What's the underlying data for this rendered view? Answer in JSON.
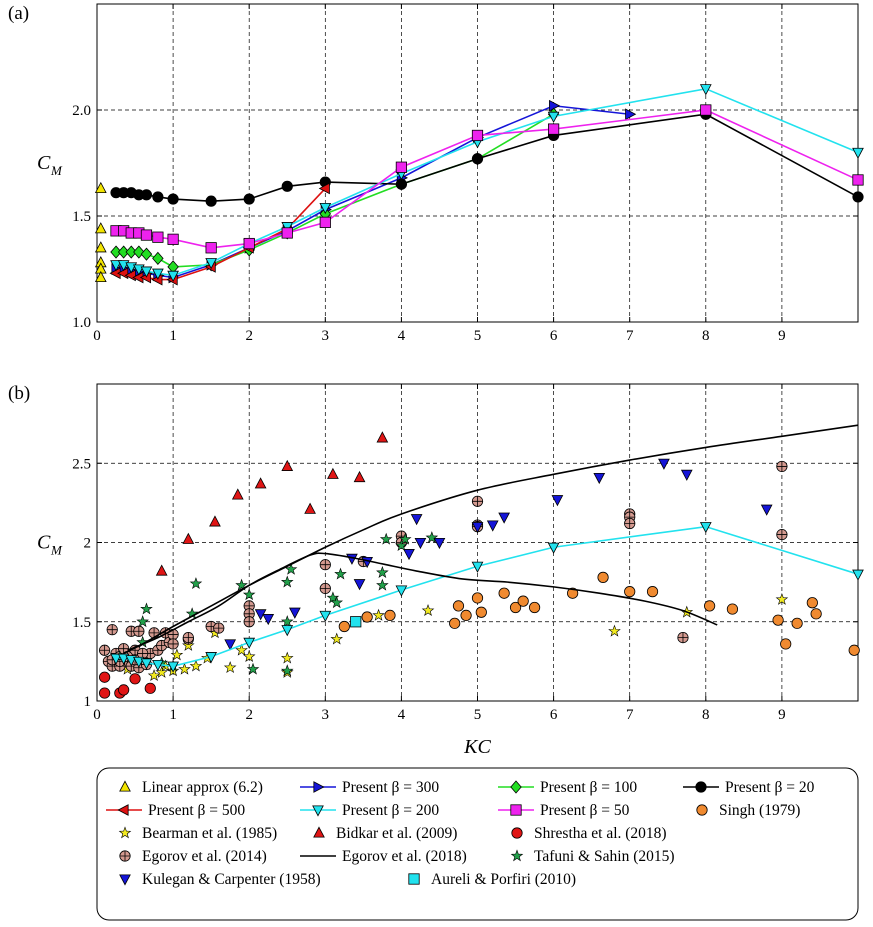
{
  "chart_data": [
    {
      "panel": "(a)",
      "type": "line",
      "ylabel": "C",
      "ylabel_sub": "M",
      "xlim": [
        0,
        10
      ],
      "ylim": [
        1.0,
        2.5
      ],
      "xticks": [
        0,
        1,
        2,
        3,
        4,
        5,
        6,
        7,
        8,
        9
      ],
      "yticks": [
        1.0,
        1.5,
        2.0
      ],
      "ytick_labels": [
        "1.0",
        "1.5",
        "2.0"
      ],
      "grid": true,
      "series": [
        {
          "key": "linear",
          "color": "#f2e400",
          "marker": "triangle-up",
          "line": false,
          "x": [
            0.05,
            0.05,
            0.05,
            0.05,
            0.05,
            0.05
          ],
          "y": [
            1.63,
            1.44,
            1.35,
            1.28,
            1.25,
            1.21
          ]
        },
        {
          "key": "b300",
          "color": "#1515d8",
          "marker": "triangle-right",
          "line": true,
          "x": [
            0.25,
            0.35,
            0.45,
            0.55,
            0.65,
            0.8,
            1.0,
            1.5,
            2.0,
            2.5,
            3.0,
            4.0,
            5.0,
            6.0,
            7.0
          ],
          "y": [
            1.25,
            1.25,
            1.24,
            1.24,
            1.23,
            1.22,
            1.21,
            1.27,
            1.35,
            1.43,
            1.53,
            1.68,
            1.87,
            2.02,
            1.98
          ]
        },
        {
          "key": "b100",
          "color": "#22dd22",
          "marker": "diamond",
          "line": true,
          "x": [
            0.25,
            0.35,
            0.45,
            0.55,
            0.65,
            0.8,
            1.0,
            1.5,
            2.0,
            2.5,
            3.0,
            4.0,
            5.0,
            6.0
          ],
          "y": [
            1.33,
            1.33,
            1.33,
            1.33,
            1.32,
            1.3,
            1.26,
            1.27,
            1.34,
            1.42,
            1.51,
            1.65,
            1.77,
            1.98
          ]
        },
        {
          "key": "b20",
          "color": "#000000",
          "marker": "circle",
          "line": true,
          "x": [
            0.25,
            0.35,
            0.45,
            0.55,
            0.65,
            0.8,
            1.0,
            1.5,
            2.0,
            2.5,
            3.0,
            4.0,
            5.0,
            6.0,
            8.0,
            10.0
          ],
          "y": [
            1.61,
            1.61,
            1.61,
            1.6,
            1.6,
            1.59,
            1.58,
            1.57,
            1.58,
            1.64,
            1.66,
            1.65,
            1.77,
            1.88,
            1.98,
            1.59
          ]
        },
        {
          "key": "b500",
          "color": "#dd1111",
          "marker": "triangle-left",
          "line": true,
          "x": [
            0.25,
            0.35,
            0.45,
            0.55,
            0.65,
            0.8,
            1.0,
            1.5,
            2.0,
            2.5,
            3.0
          ],
          "y": [
            1.23,
            1.23,
            1.22,
            1.21,
            1.21,
            1.2,
            1.2,
            1.26,
            1.35,
            1.44,
            1.63
          ]
        },
        {
          "key": "b200",
          "color": "#22e2ee",
          "marker": "triangle-down",
          "line": true,
          "x": [
            0.25,
            0.35,
            0.45,
            0.55,
            0.65,
            0.8,
            1.0,
            1.5,
            2.0,
            2.5,
            3.0,
            4.0,
            5.0,
            6.0,
            8.0,
            10.0
          ],
          "y": [
            1.27,
            1.27,
            1.26,
            1.25,
            1.24,
            1.23,
            1.22,
            1.28,
            1.37,
            1.45,
            1.54,
            1.7,
            1.85,
            1.97,
            2.1,
            1.8
          ]
        },
        {
          "key": "b50",
          "color": "#ee22ee",
          "marker": "square",
          "line": true,
          "x": [
            0.25,
            0.35,
            0.45,
            0.55,
            0.65,
            0.8,
            1.0,
            1.5,
            2.0,
            2.5,
            3.0,
            4.0,
            5.0,
            6.0,
            8.0,
            10.0
          ],
          "y": [
            1.43,
            1.43,
            1.42,
            1.42,
            1.41,
            1.4,
            1.39,
            1.35,
            1.37,
            1.42,
            1.47,
            1.73,
            1.88,
            1.91,
            2.0,
            1.67
          ]
        }
      ]
    },
    {
      "panel": "(b)",
      "type": "scatter",
      "xlabel": "KC",
      "ylabel": "C",
      "ylabel_sub": "M",
      "xlim": [
        0,
        10
      ],
      "ylim": [
        1.0,
        3.0
      ],
      "xticks": [
        0,
        1,
        2,
        3,
        4,
        5,
        6,
        7,
        8,
        9
      ],
      "yticks": [
        1.0,
        1.5,
        2.0,
        2.5
      ],
      "ytick_labels": [
        "1",
        "1.5",
        "2",
        "2.5"
      ],
      "grid": true,
      "series": [
        {
          "key": "singh",
          "color": "#f08a30",
          "marker": "circle",
          "line": false,
          "x": [
            3.25,
            3.55,
            3.85,
            4.7,
            4.75,
            4.85,
            5.0,
            5.05,
            5.35,
            5.5,
            5.6,
            5.75,
            6.25,
            6.65,
            7.0,
            7.3,
            8.05,
            8.35,
            8.95,
            9.05,
            9.2,
            9.4,
            9.45,
            9.95
          ],
          "y": [
            1.47,
            1.53,
            1.54,
            1.49,
            1.6,
            1.54,
            1.65,
            1.56,
            1.68,
            1.59,
            1.63,
            1.59,
            1.68,
            1.78,
            1.69,
            1.69,
            1.6,
            1.58,
            1.51,
            1.36,
            1.49,
            1.62,
            1.55,
            1.32
          ]
        },
        {
          "key": "bearman",
          "color": "#f2ea20",
          "marker": "star",
          "line": false,
          "x": [
            0.4,
            0.55,
            0.65,
            0.75,
            0.85,
            0.9,
            1.0,
            1.05,
            1.15,
            1.2,
            1.3,
            1.45,
            1.55,
            1.75,
            1.9,
            2.0,
            2.5,
            2.5,
            3.15,
            3.7,
            4.35,
            6.8,
            7.75,
            9.0
          ],
          "y": [
            1.2,
            1.3,
            1.23,
            1.16,
            1.18,
            1.22,
            1.19,
            1.29,
            1.2,
            1.35,
            1.22,
            1.27,
            1.43,
            1.21,
            1.32,
            1.28,
            1.18,
            1.27,
            1.39,
            1.54,
            1.57,
            1.44,
            1.56,
            1.64
          ]
        },
        {
          "key": "bidkar",
          "color": "#e01515",
          "marker": "triangle-up",
          "line": false,
          "x": [
            0.85,
            1.2,
            1.55,
            1.85,
            2.15,
            2.5,
            2.8,
            3.1,
            3.45,
            3.75
          ],
          "y": [
            1.82,
            2.02,
            2.13,
            2.3,
            2.37,
            2.48,
            2.21,
            2.43,
            2.41,
            2.66
          ]
        },
        {
          "key": "shrestha",
          "color": "#e01515",
          "marker": "circle",
          "line": false,
          "x": [
            0.1,
            0.1,
            0.3,
            0.35,
            0.5,
            0.7
          ],
          "y": [
            1.15,
            1.05,
            1.05,
            1.07,
            1.14,
            1.08
          ]
        },
        {
          "key": "egorov2014",
          "color": "#d49a90",
          "marker": "circle-plus",
          "line": false,
          "x": [
            0.1,
            0.15,
            0.2,
            0.25,
            0.3,
            0.35,
            0.4,
            0.45,
            0.5,
            0.55,
            0.6,
            0.7,
            0.75,
            0.8,
            0.85,
            0.9,
            0.95,
            1.0,
            1.0,
            1.2,
            1.2,
            1.5,
            1.6,
            2.0,
            2.0,
            2.0,
            3.0,
            3.0,
            3.5,
            4.0,
            4.0,
            5.0,
            5.0,
            5.0,
            7.0,
            7.0,
            7.0,
            7.7,
            9.0,
            9.0,
            0.2,
            0.3,
            0.45,
            0.55,
            0.65,
            0.2,
            0.3,
            0.4,
            0.5,
            0.6
          ],
          "y": [
            1.32,
            1.25,
            1.45,
            1.3,
            1.28,
            1.33,
            1.25,
            1.44,
            1.32,
            1.44,
            1.27,
            1.3,
            1.43,
            1.32,
            1.35,
            1.43,
            1.37,
            1.42,
            1.36,
            1.39,
            1.4,
            1.47,
            1.46,
            1.6,
            1.55,
            1.5,
            1.86,
            1.71,
            1.88,
            2.04,
            2.0,
            2.26,
            2.11,
            2.1,
            2.18,
            2.16,
            2.12,
            1.4,
            2.48,
            2.05,
            1.22,
            1.22,
            1.22,
            1.21,
            1.23,
            1.26,
            1.25,
            1.28,
            1.26,
            1.3
          ]
        },
        {
          "key": "tafuni",
          "color": "#22a04a",
          "marker": "star",
          "line": false,
          "x": [
            0.3,
            0.6,
            0.65,
            0.85,
            1.0,
            1.25,
            1.3,
            1.9,
            2.0,
            2.05,
            2.5,
            2.5,
            2.55,
            2.5,
            3.1,
            3.15,
            3.2,
            3.75,
            3.75,
            3.8,
            4.0,
            4.05,
            4.4,
            0.6
          ],
          "y": [
            1.28,
            1.5,
            1.58,
            1.24,
            1.22,
            1.55,
            1.74,
            1.73,
            1.67,
            1.2,
            1.75,
            1.5,
            1.83,
            1.19,
            1.65,
            1.62,
            1.8,
            1.73,
            1.81,
            2.02,
            1.98,
            2.02,
            2.03,
            1.37
          ]
        },
        {
          "key": "kulegan",
          "color": "#1515d8",
          "marker": "triangle-down",
          "line": false,
          "x": [
            1.75,
            2.15,
            2.25,
            2.6,
            3.35,
            3.45,
            3.55,
            4.1,
            4.2,
            4.25,
            4.5,
            5.0,
            5.2,
            5.35,
            6.05,
            6.6,
            7.45,
            7.75,
            8.8
          ],
          "y": [
            1.36,
            1.55,
            1.52,
            1.56,
            1.9,
            1.74,
            1.88,
            1.93,
            2.15,
            2.0,
            2.0,
            2.1,
            2.11,
            2.16,
            2.27,
            2.41,
            2.5,
            2.43,
            2.21
          ]
        },
        {
          "key": "aureli",
          "color": "#22e2ee",
          "marker": "square",
          "line": false,
          "x": [
            3.4
          ],
          "y": [
            1.5
          ]
        },
        {
          "key": "b200",
          "color": "#22e2ee",
          "marker": "triangle-down",
          "line": true,
          "x": [
            0.25,
            0.35,
            0.45,
            0.55,
            0.65,
            0.8,
            1.0,
            1.5,
            2.0,
            2.5,
            3.0,
            4.0,
            5.0,
            6.0,
            8.0,
            10.0
          ],
          "y": [
            1.27,
            1.27,
            1.26,
            1.25,
            1.24,
            1.23,
            1.22,
            1.28,
            1.37,
            1.45,
            1.54,
            1.7,
            1.85,
            1.97,
            2.1,
            1.8
          ]
        },
        {
          "key": "egorov2018",
          "color": "#000000",
          "marker": "none",
          "line": true,
          "smooth": true,
          "x": [
            0.35,
            0.6,
            1.0,
            1.5,
            2.0,
            2.5,
            3.0,
            3.5,
            4.0,
            5.0,
            6.0,
            7.0,
            8.0,
            9.0,
            10.0
          ],
          "y": [
            1.3,
            1.36,
            1.47,
            1.6,
            1.73,
            1.85,
            1.97,
            2.08,
            2.18,
            2.33,
            2.43,
            2.52,
            2.6,
            2.67,
            2.74
          ]
        },
        {
          "key": "egorov2018",
          "color": "#000000",
          "marker": "none",
          "line": true,
          "smooth": true,
          "x": [
            0.4,
            0.8,
            1.2,
            1.6,
            2.0,
            2.4,
            2.8,
            3.0,
            3.4,
            3.8,
            4.2,
            4.8,
            5.4,
            6.0,
            6.6,
            7.2,
            7.7,
            8.15
          ],
          "y": [
            1.32,
            1.4,
            1.5,
            1.6,
            1.73,
            1.83,
            1.92,
            1.93,
            1.9,
            1.86,
            1.82,
            1.77,
            1.75,
            1.72,
            1.68,
            1.63,
            1.57,
            1.48
          ]
        }
      ]
    }
  ],
  "panel_labels": {
    "a": "(a)",
    "b": "(b)"
  },
  "legend": [
    {
      "key": "linear",
      "label": "Linear approx (6.2)",
      "color": "#f2e400",
      "marker": "triangle-up",
      "line": false
    },
    {
      "key": "b300",
      "label": "Present β = 300",
      "color": "#1515d8",
      "marker": "triangle-right",
      "line": true
    },
    {
      "key": "b100",
      "label": "Present β = 100",
      "color": "#22dd22",
      "marker": "diamond",
      "line": true
    },
    {
      "key": "b20",
      "label": "Present β = 20",
      "color": "#000000",
      "marker": "circle",
      "line": true
    },
    {
      "key": "b500",
      "label": "Present β = 500",
      "color": "#dd1111",
      "marker": "triangle-left",
      "line": true
    },
    {
      "key": "b200",
      "label": "Present β = 200",
      "color": "#22e2ee",
      "marker": "triangle-down",
      "line": true
    },
    {
      "key": "b50",
      "label": "Present β = 50",
      "color": "#ee22ee",
      "marker": "square",
      "line": true
    },
    {
      "key": "singh",
      "label": "Singh (1979)",
      "color": "#f08a30",
      "marker": "circle",
      "line": false
    },
    {
      "key": "bearman",
      "label": "Bearman et al. (1985)",
      "color": "#f2ea20",
      "marker": "star",
      "line": false
    },
    {
      "key": "bidkar",
      "label": "Bidkar et al. (2009)",
      "color": "#e01515",
      "marker": "triangle-up",
      "line": false
    },
    {
      "key": "shrestha",
      "label": "Shrestha et al. (2018)",
      "color": "#e01515",
      "marker": "circle",
      "line": false
    },
    {
      "key": "egorov2014",
      "label": "Egorov et al. (2014)",
      "color": "#d49a90",
      "marker": "circle-plus",
      "line": false
    },
    {
      "key": "egorov2018",
      "label": "Egorov et al. (2018)",
      "color": "#000000",
      "marker": "none",
      "line": true
    },
    {
      "key": "tafuni",
      "label": "Tafuni & Sahin (2015)",
      "color": "#22a04a",
      "marker": "star",
      "line": false
    },
    {
      "key": "kulegan",
      "label": "Kulegan & Carpenter (1958)",
      "color": "#1515d8",
      "marker": "triangle-down",
      "line": false
    },
    {
      "key": "aureli",
      "label": "Aureli & Porfiri (2010)",
      "color": "#22e2ee",
      "marker": "square",
      "line": false
    }
  ]
}
